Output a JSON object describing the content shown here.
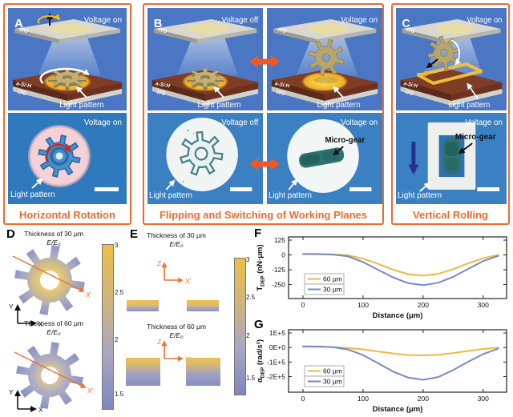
{
  "colors": {
    "accent_orange": "#F2692C",
    "arrow_orange": "#F2581F",
    "schematic_bg": "#4B76C4",
    "micro_bg": "#2F79BD",
    "series_60_color": "#F0B83F",
    "series_30_color": "#7888C8"
  },
  "panelA": {
    "letter": "A",
    "schematic": {
      "voltage": "Voltage on",
      "ito_top": "ITO",
      "a_si_h": "a-Si:H",
      "ito_bottom": "ITO",
      "light_pattern": "Light pattern"
    },
    "micro": {
      "voltage": "Voltage on",
      "light_pattern": "Light pattern"
    },
    "caption": "Horizontal Rotation"
  },
  "panelB": {
    "letter": "B",
    "schematic_off": {
      "voltage": "Voltage off",
      "ito_top": "ITO",
      "a_si_h": "a-Si:H",
      "ito_bottom": "ITO",
      "light_pattern": "Light pattern"
    },
    "schematic_on": {
      "voltage": "Voltage on",
      "ito_top": "ITO",
      "a_si_h": "a-Si:H",
      "ito_bottom": "ITO",
      "light_pattern": "Light pattern"
    },
    "micro_off": {
      "voltage": "Voltage off",
      "light_pattern": "Light pattern"
    },
    "micro_on": {
      "voltage": "Voltage on",
      "micro_gear": "Micro-gear",
      "light_pattern": "Light pattern"
    },
    "caption": "Flipping and Switching of Working Planes"
  },
  "panelC": {
    "letter": "C",
    "schematic": {
      "voltage": "Voltage on",
      "ito_top": "ITO",
      "a_si_h": "a-Si:H",
      "ito_bottom": "ITO",
      "light_pattern": "Light pattern"
    },
    "micro": {
      "voltage": "Voltage on",
      "micro_gear": "Micro-gear",
      "light_pattern": "Light pattern"
    },
    "caption": "Vertical Rolling"
  },
  "panelD": {
    "letter": "D",
    "title_30": "Thickness of 30 μm",
    "title_60": "Thickness of 60 μm",
    "e_field": "E/E₀",
    "axis_y": "Y",
    "axis_x": "X",
    "axis_x_prime": "X′",
    "colorbar_ticks": [
      "3",
      "2.5",
      "2",
      "1.5"
    ]
  },
  "panelE": {
    "letter": "E",
    "title_30": "Thickness of 30 μm",
    "title_60": "Thickness of 60 μm",
    "e_field": "E/E₀",
    "axis_z": "Z",
    "axis_x_prime": "X′",
    "colorbar_ticks": [
      "3",
      "2.5",
      "2",
      "1.5"
    ]
  },
  "chart_data": [
    {
      "id": "F",
      "panel_letter": "F",
      "type": "line",
      "xlabel": "Distance (μm)",
      "ylabel": {
        "main": "T",
        "sub": "DEP",
        "unit": " (nN·μm)"
      },
      "x_ticks": [
        0,
        100,
        200,
        300
      ],
      "y_ticks": [
        125,
        0,
        -125,
        -250
      ],
      "y_tick_labels": [
        "125",
        "0",
        "-125",
        "-250"
      ],
      "xlim": [
        -24,
        339
      ],
      "ylim": [
        -368,
        152
      ],
      "grid": false,
      "legend_position": "bottom-left",
      "x": [
        0,
        25,
        50,
        75,
        100,
        125,
        150,
        175,
        200,
        225,
        250,
        275,
        300,
        325
      ],
      "series": [
        {
          "name": "60 μm",
          "color": "#F0B83F",
          "values": [
            8,
            8,
            5,
            -3,
            -32,
            -75,
            -125,
            -162,
            -175,
            -160,
            -120,
            -70,
            -28,
            0
          ]
        },
        {
          "name": "30 μm",
          "color": "#7888C8",
          "values": [
            8,
            7,
            3,
            -12,
            -60,
            -125,
            -190,
            -238,
            -255,
            -235,
            -185,
            -118,
            -52,
            -8
          ]
        }
      ]
    },
    {
      "id": "G",
      "panel_letter": "G",
      "type": "line",
      "xlabel": "Distance (μm)",
      "ylabel": {
        "main": "α",
        "sub": "DEP",
        "unit": " (rad/s²)"
      },
      "x_ticks": [
        0,
        100,
        200,
        300
      ],
      "y_ticks": [
        100000,
        0,
        -100000,
        -200000
      ],
      "y_tick_labels": [
        "1E+5",
        "0E+0",
        "-1E+5",
        "-2E+5"
      ],
      "xlim": [
        -24,
        339
      ],
      "ylim": [
        -307000,
        122000
      ],
      "grid": false,
      "legend_position": "bottom-left",
      "x": [
        0,
        25,
        50,
        75,
        100,
        125,
        150,
        175,
        200,
        225,
        250,
        275,
        300,
        325
      ],
      "series": [
        {
          "name": "60 μm",
          "color": "#F0B83F",
          "values": [
            5000,
            5000,
            3000,
            -3000,
            -13000,
            -27000,
            -41000,
            -51000,
            -54000,
            -50000,
            -38000,
            -24000,
            -10000,
            0
          ]
        },
        {
          "name": "30 μm",
          "color": "#7888C8",
          "values": [
            8000,
            7000,
            2000,
            -14000,
            -52000,
            -108000,
            -165000,
            -207000,
            -222000,
            -203000,
            -155000,
            -98000,
            -45000,
            -8000
          ]
        }
      ]
    }
  ]
}
